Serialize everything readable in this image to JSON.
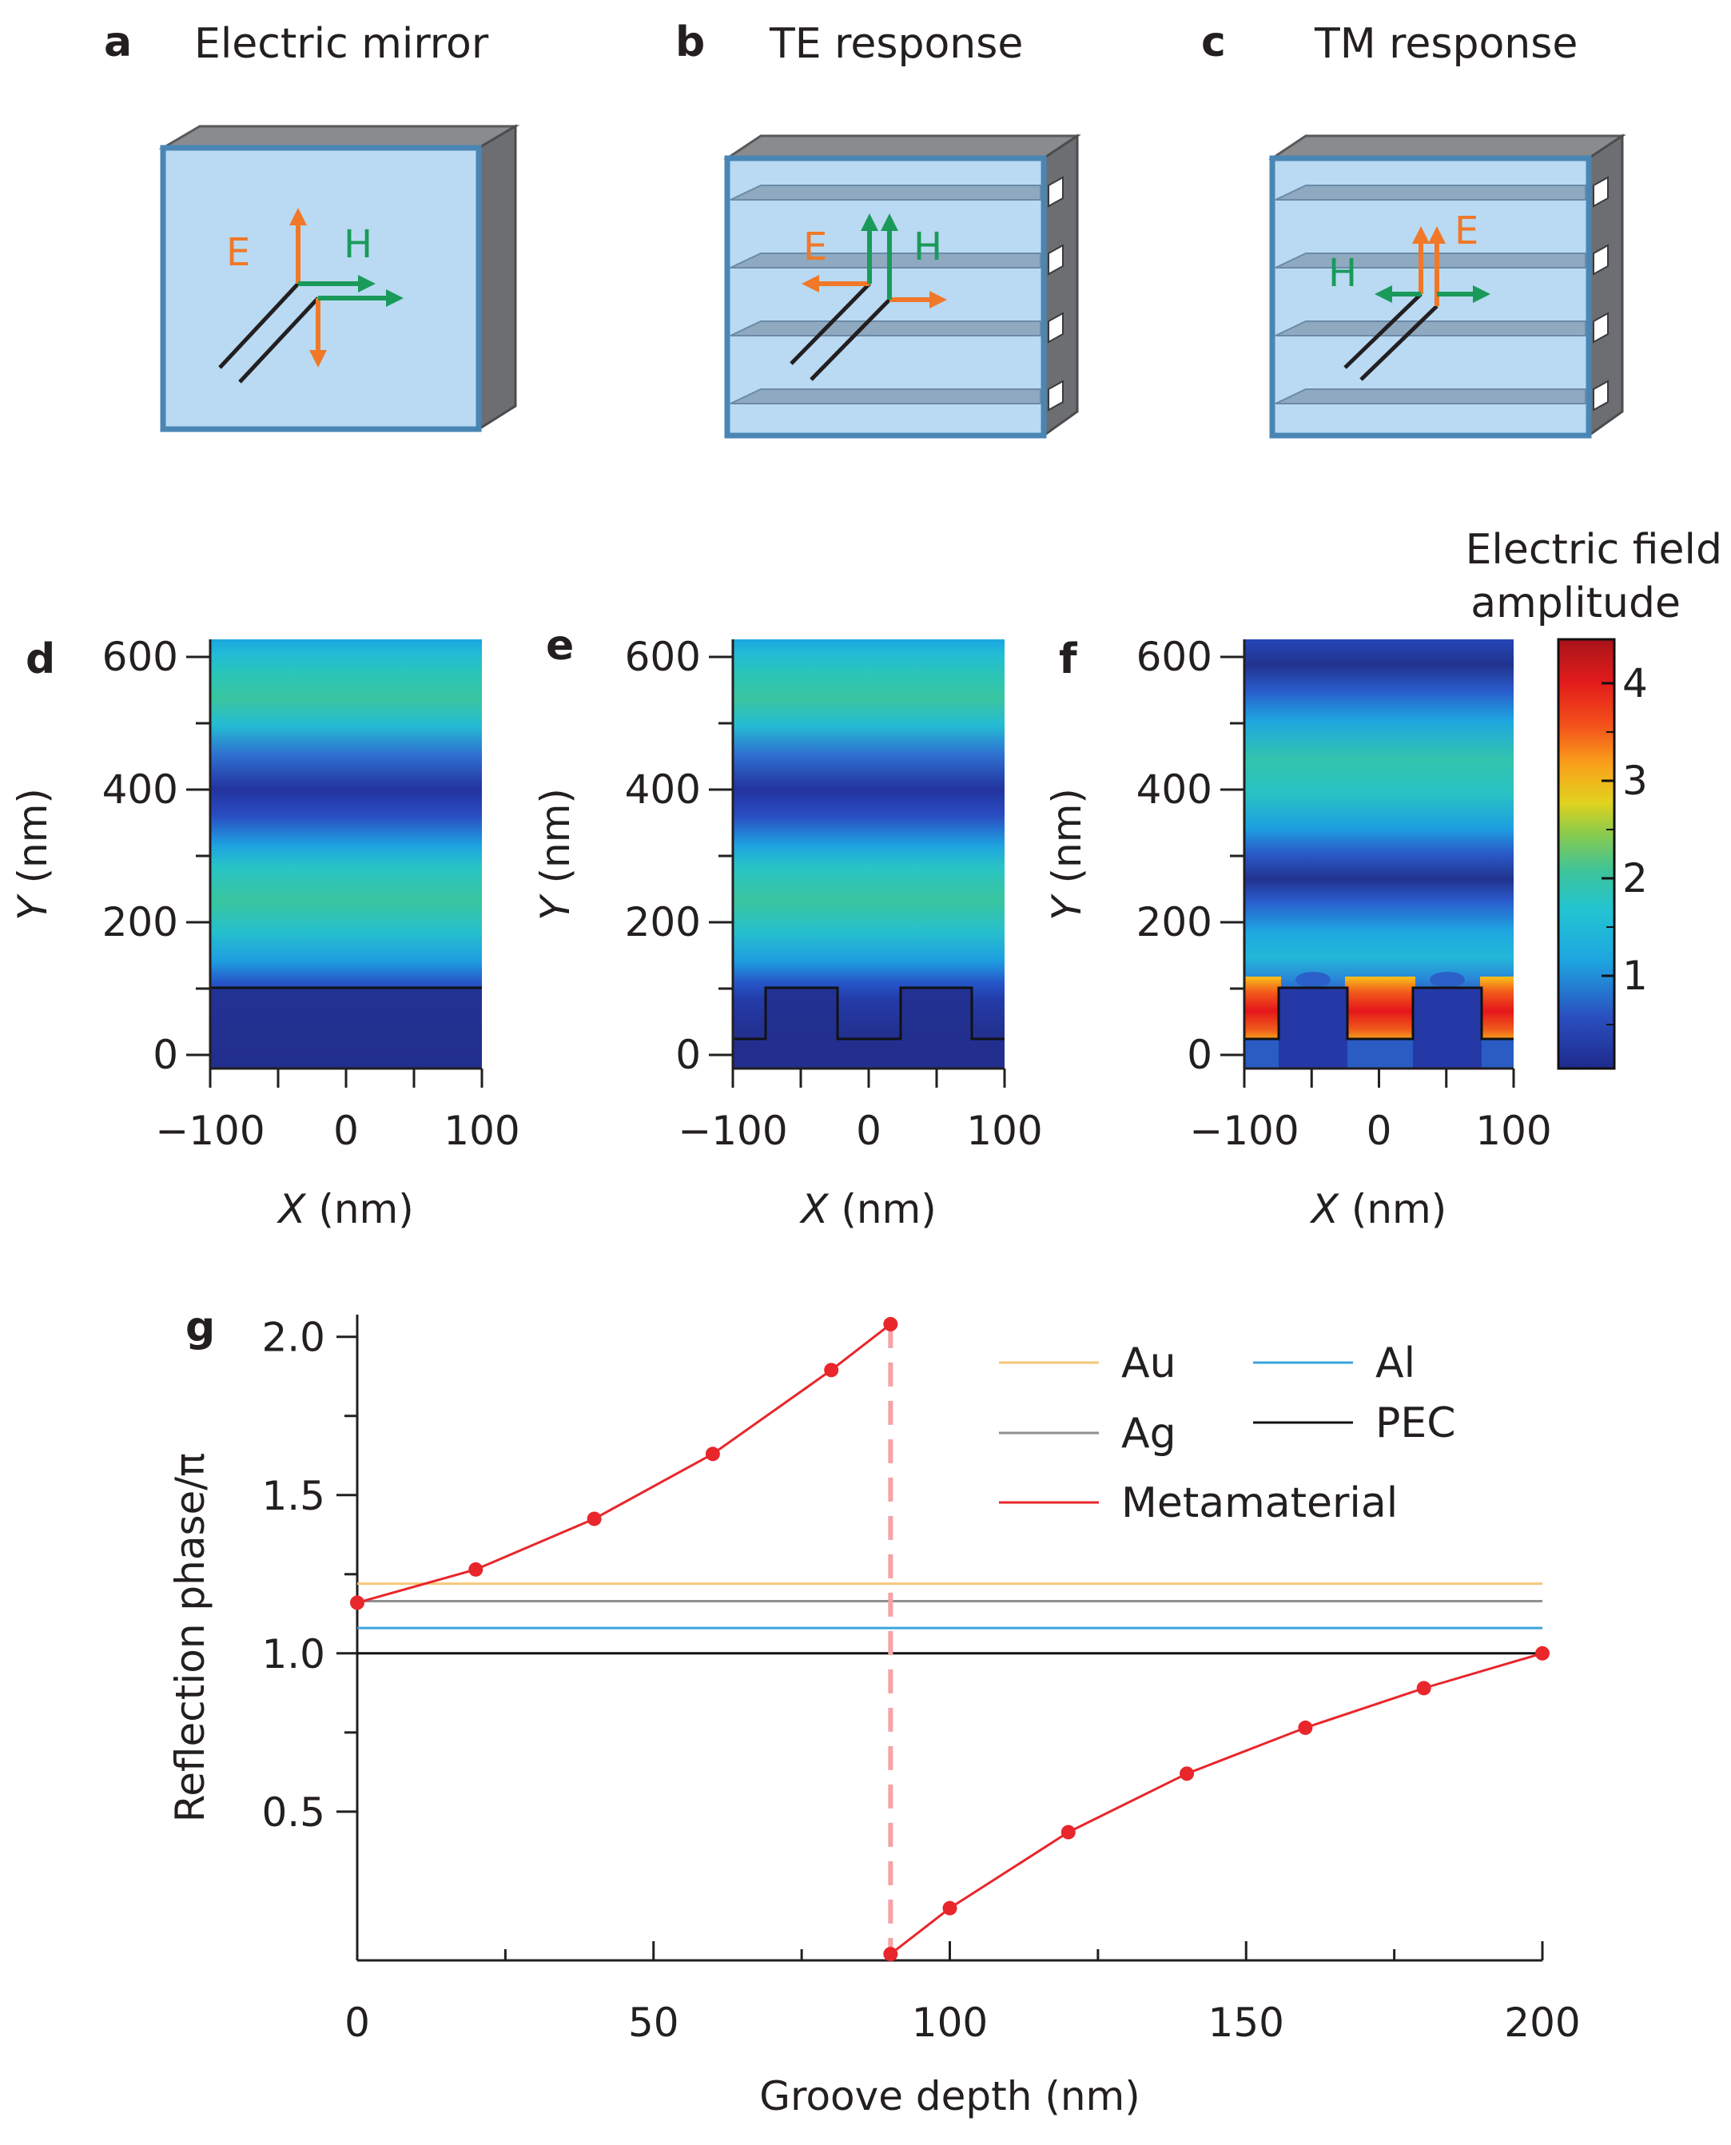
{
  "colors": {
    "orange": "#f07828",
    "green": "#1a9a5a",
    "mirror_face": "#b9daf2",
    "mirror_edge": "#4a86b4",
    "side_dark": "#6d6e71",
    "top_dark": "#8a8b8d",
    "au": "#f7c77a",
    "ag": "#8f8f8f",
    "al": "#3aa5dc",
    "pec": "#111111",
    "meta": "#e8262b",
    "meta_dash": "#f4a3a6"
  },
  "schematics": {
    "a": {
      "label": "a",
      "title": "Electric mirror",
      "e": "E",
      "h": "H"
    },
    "b": {
      "label": "b",
      "title": "TE response",
      "e": "E",
      "h": "H"
    },
    "c": {
      "label": "c",
      "title": "TM response",
      "e": "E",
      "h": "H"
    }
  },
  "field_maps": {
    "d": {
      "label": "d",
      "xlabel_var": "X",
      "xlabel_unit": " (nm)",
      "ylabel_var": "Y",
      "ylabel_unit": " (nm)"
    },
    "e": {
      "label": "e",
      "xlabel_var": "X",
      "xlabel_unit": " (nm)",
      "ylabel_var": "Y",
      "ylabel_unit": " (nm)"
    },
    "f": {
      "label": "f",
      "xlabel_var": "X",
      "xlabel_unit": " (nm)",
      "ylabel_var": "Y",
      "ylabel_unit": " (nm)"
    },
    "x_ticks": [
      "−100",
      "0",
      "100"
    ],
    "y_ticks": [
      "0",
      "200",
      "400",
      "600"
    ],
    "colorbar_title_1": "Electric field",
    "colorbar_title_2": "amplitude",
    "colorbar_ticks": [
      "1",
      "2",
      "3",
      "4"
    ]
  },
  "chart_data": {
    "type": "line",
    "label": "g",
    "xlabel": "Groove depth (nm)",
    "ylabel": "Reflection phase/π",
    "xlim": [
      0,
      200
    ],
    "ylim": [
      0.03,
      2.07
    ],
    "x_ticks": [
      "0",
      "50",
      "100",
      "150",
      "200"
    ],
    "y_ticks": [
      "0.5",
      "1.0",
      "1.5",
      "2.0"
    ],
    "series": [
      {
        "name": "Au",
        "type": "hline",
        "value": 1.22
      },
      {
        "name": "Ag",
        "type": "hline",
        "value": 1.165
      },
      {
        "name": "Al",
        "type": "hline",
        "value": 1.08
      },
      {
        "name": "PEC",
        "type": "hline",
        "value": 1.0
      },
      {
        "name": "Metamaterial",
        "type": "line-markers",
        "segments": [
          {
            "x": [
              0,
              20,
              40,
              60,
              80,
              90
            ],
            "y": [
              1.16,
              1.265,
              1.425,
              1.63,
              1.895,
              2.04
            ]
          },
          {
            "x": [
              90,
              100,
              120,
              140,
              160,
              180,
              200
            ],
            "y": [
              0.05,
              0.195,
              0.435,
              0.62,
              0.765,
              0.89,
              1.0
            ]
          }
        ],
        "discontinuity_x": 90
      }
    ],
    "legend_position": "top-right"
  }
}
